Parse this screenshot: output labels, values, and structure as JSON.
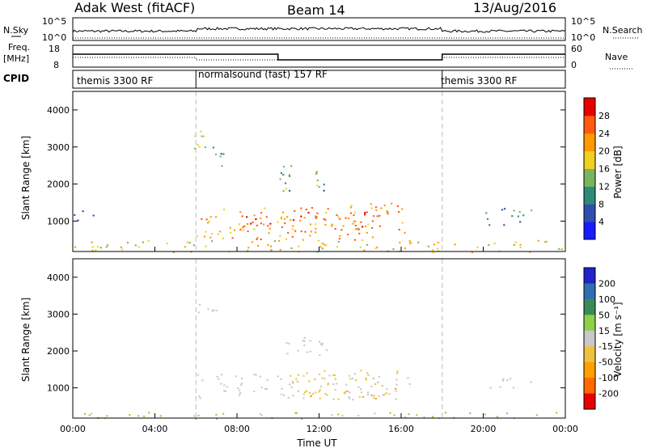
{
  "header": {
    "station": "Adak West (fitACF)",
    "beam": "Beam 14",
    "date": "13/Aug/2016"
  },
  "panels": {
    "nsky": {
      "left_label": "N.Sky",
      "right_label": "N.Search",
      "left_ticks": [
        "10^5",
        "10^0"
      ],
      "right_ticks": [
        "10^5",
        "10^0"
      ]
    },
    "freq": {
      "left_label": "Freq.",
      "left_unit": "[MHz]",
      "right_label": "Nave",
      "left_ticks": [
        "18",
        "8"
      ],
      "right_ticks": [
        "60",
        "0"
      ]
    },
    "cpid": {
      "label": "CPID",
      "segments": [
        {
          "text": "themis 3300 RF",
          "start": 0,
          "end": 6
        },
        {
          "text": "normalsound (fast) 157 RF",
          "start": 6,
          "end": 18
        },
        {
          "text": "themis 3300 RF",
          "start": 18,
          "end": 24
        }
      ]
    }
  },
  "axes": {
    "y_label": "Slant Range [km]",
    "y_ticks": [
      "1000",
      "2000",
      "3000",
      "4000"
    ],
    "x_label": "Time UT",
    "x_ticks": [
      "00:00",
      "04:00",
      "08:00",
      "12:00",
      "16:00",
      "20:00",
      "00:00"
    ]
  },
  "colorbars": {
    "power": {
      "label": "Power [dB]",
      "ticks": [
        "4",
        "8",
        "12",
        "16",
        "20",
        "24",
        "28"
      ],
      "colors": [
        "#1a1aff",
        "#2f4fb0",
        "#2e8a78",
        "#7ab55c",
        "#f0d020",
        "#ff9a00",
        "#ff5a10",
        "#e80000"
      ]
    },
    "velocity": {
      "label": "Velocity [m s⁻¹]",
      "ticks": [
        "200",
        "100",
        "50",
        "15",
        "-15",
        "-50",
        "-100",
        "-200"
      ],
      "colors": [
        "#2222c8",
        "#2f6fb0",
        "#3a8a58",
        "#8ed048",
        "#c8c8c8",
        "#f0c040",
        "#ffa000",
        "#ff6a00",
        "#e80000"
      ]
    }
  },
  "chart_data": {
    "type": "heatmap",
    "x_range_hours": [
      0,
      24
    ],
    "y_range_km": [
      180,
      4500
    ],
    "mode_change_hours": [
      6,
      18
    ],
    "power_regions": [
      {
        "t0": 5.9,
        "t1": 7.2,
        "r0": 2900,
        "r1": 3500,
        "level": 14
      },
      {
        "t0": 6.6,
        "t1": 7.6,
        "r0": 2500,
        "r1": 2950,
        "level": 10
      },
      {
        "t0": 10.0,
        "t1": 12.3,
        "r0": 1800,
        "r1": 2550,
        "level": 12
      },
      {
        "t0": 6.0,
        "t1": 16.2,
        "r0": 500,
        "r1": 1500,
        "level": 22
      },
      {
        "t0": 8.0,
        "t1": 12.0,
        "r0": 700,
        "r1": 1300,
        "level": 27
      },
      {
        "t0": 12.5,
        "t1": 15.0,
        "r0": 800,
        "r1": 1350,
        "level": 25
      },
      {
        "t0": 20.0,
        "t1": 22.6,
        "r0": 900,
        "r1": 1400,
        "level": 9
      },
      {
        "t0": 0.0,
        "t1": 24.0,
        "r0": 180,
        "r1": 500,
        "level": 18
      },
      {
        "t0": 0.0,
        "t1": 1.0,
        "r0": 1000,
        "r1": 1400,
        "level": 6
      }
    ],
    "velocity_regions": [
      {
        "t0": 6.0,
        "t1": 16.5,
        "r0": 700,
        "r1": 1400,
        "velocity": 0
      },
      {
        "t0": 10.5,
        "t1": 16.0,
        "r0": 700,
        "r1": 1500,
        "velocity": -40
      },
      {
        "t0": 5.9,
        "t1": 7.0,
        "r0": 2900,
        "r1": 3500,
        "velocity": 0
      },
      {
        "t0": 10.0,
        "t1": 12.5,
        "r0": 1800,
        "r1": 2400,
        "velocity": 0
      },
      {
        "t0": 20.0,
        "t1": 22.5,
        "r0": 1000,
        "r1": 1300,
        "velocity": 0
      },
      {
        "t0": 0.0,
        "t1": 24.0,
        "r0": 180,
        "r1": 350,
        "velocity": 20
      }
    ]
  }
}
